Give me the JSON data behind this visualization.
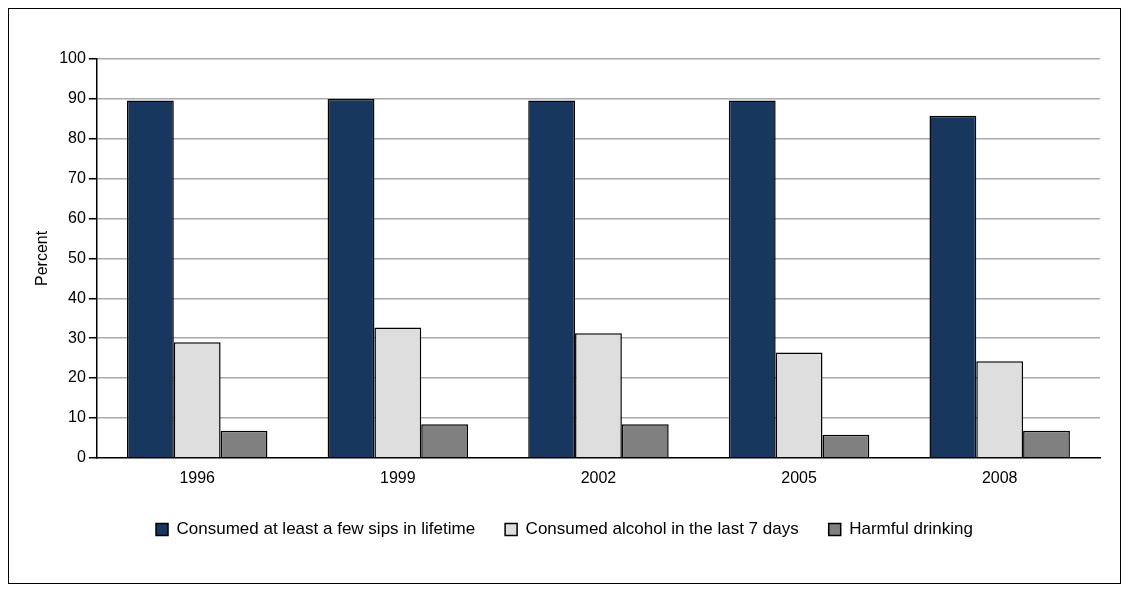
{
  "chart_data": {
    "type": "bar",
    "ylabel": "Percent",
    "categories": [
      "1996",
      "1999",
      "2002",
      "2005",
      "2008"
    ],
    "series": [
      {
        "name": "Consumed at least a few sips in lifetime",
        "color": "#17375e",
        "values": [
          89.6,
          90,
          89.6,
          89.6,
          85.8
        ]
      },
      {
        "name": "Consumed alcohol in the last 7 days",
        "color": "#dedede",
        "values": [
          29,
          32.7,
          31.2,
          26.4,
          24.2
        ]
      },
      {
        "name": "Harmful drinking",
        "color": "#808080",
        "values": [
          6.8,
          8.4,
          8.4,
          5.8,
          6.8
        ]
      }
    ],
    "ylim": [
      0,
      100
    ],
    "yticks": [
      0,
      10,
      20,
      30,
      40,
      50,
      60,
      70,
      80,
      90,
      100
    ],
    "grid": "y",
    "legend": "bottom"
  }
}
